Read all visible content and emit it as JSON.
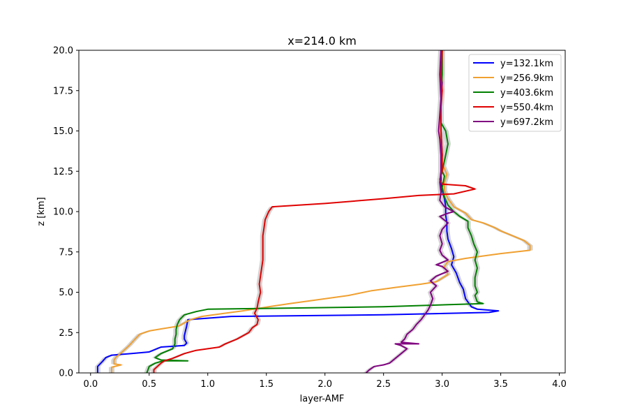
{
  "chart_data": {
    "type": "line",
    "title": "x=214.0 km",
    "xlabel": "layer-AMF",
    "ylabel": "z [km]",
    "xlim": [
      -0.1,
      4.05
    ],
    "ylim": [
      0,
      20
    ],
    "xticks": [
      0.0,
      0.5,
      1.0,
      1.5,
      2.0,
      2.5,
      3.0,
      3.5,
      4.0
    ],
    "xtick_labels": [
      "0.0",
      "0.5",
      "1.0",
      "1.5",
      "2.0",
      "2.5",
      "3.0",
      "3.5",
      "4.0"
    ],
    "yticks": [
      0.0,
      2.5,
      5.0,
      7.5,
      10.0,
      12.5,
      15.0,
      17.5,
      20.0
    ],
    "ytick_labels": [
      "0.0",
      "2.5",
      "5.0",
      "7.5",
      "10.0",
      "12.5",
      "15.0",
      "17.5",
      "20.0"
    ],
    "grid": false,
    "legend_position": "top-right",
    "band_color": "#d3d3d3",
    "series": [
      {
        "name": "y=132.1km",
        "color": "#0000ff",
        "points": [
          [
            0.06,
            0
          ],
          [
            0.06,
            0.4
          ],
          [
            0.1,
            0.7
          ],
          [
            0.13,
            0.95
          ],
          [
            0.18,
            1.1
          ],
          [
            0.35,
            1.2
          ],
          [
            0.5,
            1.3
          ],
          [
            0.55,
            1.45
          ],
          [
            0.6,
            1.6
          ],
          [
            0.8,
            1.7
          ],
          [
            0.82,
            1.85
          ],
          [
            0.8,
            2.1
          ],
          [
            0.8,
            2.3
          ],
          [
            0.81,
            2.6
          ],
          [
            0.82,
            2.9
          ],
          [
            0.83,
            3.3
          ],
          [
            1.2,
            3.5
          ],
          [
            2.5,
            3.6
          ],
          [
            3.4,
            3.75
          ],
          [
            3.48,
            3.85
          ],
          [
            3.3,
            3.95
          ],
          [
            3.25,
            4.1
          ],
          [
            3.2,
            4.6
          ],
          [
            3.18,
            5.2
          ],
          [
            3.15,
            5.6
          ],
          [
            3.12,
            6.2
          ],
          [
            3.08,
            6.7
          ],
          [
            3.1,
            7.2
          ],
          [
            3.08,
            7.7
          ],
          [
            3.05,
            8.3
          ],
          [
            3.04,
            8.8
          ],
          [
            3.04,
            9.3
          ],
          [
            3.03,
            9.8
          ],
          [
            3.03,
            10.3
          ],
          [
            3.02,
            10.8
          ],
          [
            3.0,
            11.3
          ],
          [
            2.99,
            11.8
          ],
          [
            2.99,
            12.5
          ],
          [
            3.0,
            13.5
          ],
          [
            2.99,
            15
          ],
          [
            2.99,
            16
          ],
          [
            2.99,
            17
          ],
          [
            3.0,
            18
          ],
          [
            2.99,
            19
          ],
          [
            3.0,
            20
          ]
        ]
      },
      {
        "name": "y=256.9km",
        "color": "#f0a030",
        "points": [
          [
            0.18,
            0
          ],
          [
            0.18,
            0.35
          ],
          [
            0.26,
            0.5
          ],
          [
            0.2,
            0.55
          ],
          [
            0.2,
            0.8
          ],
          [
            0.22,
            1.0
          ],
          [
            0.27,
            1.3
          ],
          [
            0.33,
            1.7
          ],
          [
            0.38,
            2.1
          ],
          [
            0.42,
            2.4
          ],
          [
            0.5,
            2.6
          ],
          [
            0.62,
            2.75
          ],
          [
            0.75,
            2.9
          ],
          [
            0.8,
            3.1
          ],
          [
            0.85,
            3.3
          ],
          [
            0.95,
            3.5
          ],
          [
            1.15,
            3.7
          ],
          [
            1.3,
            3.85
          ],
          [
            1.52,
            4.1
          ],
          [
            1.7,
            4.3
          ],
          [
            1.9,
            4.5
          ],
          [
            2.2,
            4.8
          ],
          [
            2.4,
            5.1
          ],
          [
            2.6,
            5.3
          ],
          [
            2.82,
            5.5
          ],
          [
            2.95,
            5.65
          ],
          [
            3.05,
            6.1
          ],
          [
            3.02,
            6.6
          ],
          [
            3.05,
            6.9
          ],
          [
            3.2,
            7.1
          ],
          [
            3.5,
            7.4
          ],
          [
            3.75,
            7.6
          ],
          [
            3.75,
            7.9
          ],
          [
            3.7,
            8.2
          ],
          [
            3.6,
            8.5
          ],
          [
            3.5,
            8.8
          ],
          [
            3.45,
            9.0
          ],
          [
            3.35,
            9.3
          ],
          [
            3.25,
            9.5
          ],
          [
            3.2,
            9.9
          ],
          [
            3.1,
            10.3
          ],
          [
            3.05,
            10.8
          ],
          [
            3.02,
            11.3
          ],
          [
            3.02,
            11.8
          ],
          [
            3.04,
            12.3
          ],
          [
            3.0,
            13.0
          ],
          [
            2.99,
            14
          ],
          [
            2.99,
            15
          ],
          [
            2.99,
            17
          ],
          [
            3.0,
            18.5
          ],
          [
            3.0,
            20
          ]
        ]
      },
      {
        "name": "y=403.6km",
        "color": "#008000",
        "points": [
          [
            0.48,
            0
          ],
          [
            0.5,
            0.4
          ],
          [
            0.55,
            0.6
          ],
          [
            0.62,
            0.75
          ],
          [
            0.83,
            0.75
          ],
          [
            0.6,
            0.8
          ],
          [
            0.55,
            0.95
          ],
          [
            0.6,
            1.2
          ],
          [
            0.7,
            1.5
          ],
          [
            0.72,
            1.8
          ],
          [
            0.72,
            2.1
          ],
          [
            0.73,
            2.4
          ],
          [
            0.73,
            2.7
          ],
          [
            0.74,
            3.0
          ],
          [
            0.76,
            3.3
          ],
          [
            0.8,
            3.6
          ],
          [
            0.9,
            3.8
          ],
          [
            1.0,
            3.95
          ],
          [
            1.5,
            4.0
          ],
          [
            2.5,
            4.1
          ],
          [
            3.35,
            4.3
          ],
          [
            3.3,
            4.4
          ],
          [
            3.28,
            4.8
          ],
          [
            3.3,
            5.0
          ],
          [
            3.28,
            5.4
          ],
          [
            3.28,
            5.9
          ],
          [
            3.3,
            6.5
          ],
          [
            3.28,
            7.0
          ],
          [
            3.3,
            7.5
          ],
          [
            3.27,
            8.0
          ],
          [
            3.25,
            8.5
          ],
          [
            3.22,
            9.0
          ],
          [
            3.22,
            9.4
          ],
          [
            3.15,
            9.7
          ],
          [
            3.1,
            10.0
          ],
          [
            3.05,
            10.4
          ],
          [
            3.02,
            10.9
          ],
          [
            3.0,
            11.5
          ],
          [
            3.02,
            12.2
          ],
          [
            3.0,
            12.5
          ],
          [
            3.03,
            13.5
          ],
          [
            3.05,
            14.2
          ],
          [
            3.03,
            15.0
          ],
          [
            2.99,
            15.5
          ],
          [
            2.99,
            17
          ],
          [
            3.0,
            18.5
          ],
          [
            3.0,
            20
          ]
        ]
      },
      {
        "name": "y=550.4km",
        "color": "#e00000",
        "points": [
          [
            0.54,
            0
          ],
          [
            0.54,
            0.2
          ],
          [
            0.57,
            0.4
          ],
          [
            0.6,
            0.6
          ],
          [
            0.63,
            0.75
          ],
          [
            0.7,
            0.9
          ],
          [
            0.8,
            1.2
          ],
          [
            0.9,
            1.4
          ],
          [
            1.0,
            1.5
          ],
          [
            1.1,
            1.6
          ],
          [
            1.15,
            1.8
          ],
          [
            1.25,
            2.1
          ],
          [
            1.3,
            2.3
          ],
          [
            1.35,
            2.5
          ],
          [
            1.38,
            2.8
          ],
          [
            1.42,
            3.0
          ],
          [
            1.43,
            3.3
          ],
          [
            1.4,
            3.7
          ],
          [
            1.42,
            4.0
          ],
          [
            1.43,
            4.4
          ],
          [
            1.45,
            5.0
          ],
          [
            1.44,
            5.5
          ],
          [
            1.45,
            6.0
          ],
          [
            1.46,
            6.5
          ],
          [
            1.47,
            7.0
          ],
          [
            1.47,
            7.5
          ],
          [
            1.47,
            8.0
          ],
          [
            1.47,
            8.5
          ],
          [
            1.48,
            9.0
          ],
          [
            1.49,
            9.5
          ],
          [
            1.52,
            10.0
          ],
          [
            1.55,
            10.3
          ],
          [
            2.0,
            10.5
          ],
          [
            2.5,
            10.8
          ],
          [
            2.8,
            11.0
          ],
          [
            3.1,
            11.1
          ],
          [
            3.28,
            11.4
          ],
          [
            3.2,
            11.6
          ],
          [
            3.0,
            11.7
          ],
          [
            2.98,
            12.0
          ],
          [
            3.0,
            12.5
          ],
          [
            3.0,
            13.5
          ],
          [
            2.99,
            15.0
          ],
          [
            2.99,
            16.5
          ],
          [
            3.0,
            17.5
          ],
          [
            2.99,
            18.5
          ],
          [
            3.0,
            20
          ]
        ]
      },
      {
        "name": "y=697.2km",
        "color": "#800080",
        "points": [
          [
            2.35,
            0
          ],
          [
            2.38,
            0.2
          ],
          [
            2.42,
            0.4
          ],
          [
            2.5,
            0.5
          ],
          [
            2.55,
            0.6
          ],
          [
            2.6,
            0.9
          ],
          [
            2.65,
            1.2
          ],
          [
            2.7,
            1.5
          ],
          [
            2.65,
            1.7
          ],
          [
            2.6,
            1.8
          ],
          [
            2.8,
            1.8
          ],
          [
            2.65,
            1.9
          ],
          [
            2.68,
            2.1
          ],
          [
            2.7,
            2.4
          ],
          [
            2.75,
            2.7
          ],
          [
            2.78,
            3.0
          ],
          [
            2.82,
            3.3
          ],
          [
            2.85,
            3.6
          ],
          [
            2.88,
            3.9
          ],
          [
            2.9,
            4.2
          ],
          [
            2.92,
            4.6
          ],
          [
            2.9,
            5.0
          ],
          [
            2.95,
            5.4
          ],
          [
            2.9,
            5.7
          ],
          [
            2.95,
            6.0
          ],
          [
            3.05,
            6.3
          ],
          [
            3.0,
            6.6
          ],
          [
            2.95,
            6.7
          ],
          [
            3.05,
            7.0
          ],
          [
            3.0,
            7.3
          ],
          [
            2.98,
            7.6
          ],
          [
            3.0,
            8.0
          ],
          [
            2.98,
            8.5
          ],
          [
            3.0,
            8.9
          ],
          [
            3.05,
            9.3
          ],
          [
            2.98,
            9.7
          ],
          [
            3.05,
            9.9
          ],
          [
            3.1,
            10.0
          ],
          [
            3.02,
            10.3
          ],
          [
            2.98,
            10.7
          ],
          [
            2.99,
            11.2
          ],
          [
            2.98,
            11.8
          ],
          [
            2.99,
            12.5
          ],
          [
            2.99,
            13.5
          ],
          [
            2.98,
            14.5
          ],
          [
            2.97,
            15.0
          ],
          [
            2.98,
            16.0
          ],
          [
            2.99,
            17.0
          ],
          [
            2.98,
            18.5
          ],
          [
            2.99,
            20
          ]
        ]
      }
    ]
  }
}
